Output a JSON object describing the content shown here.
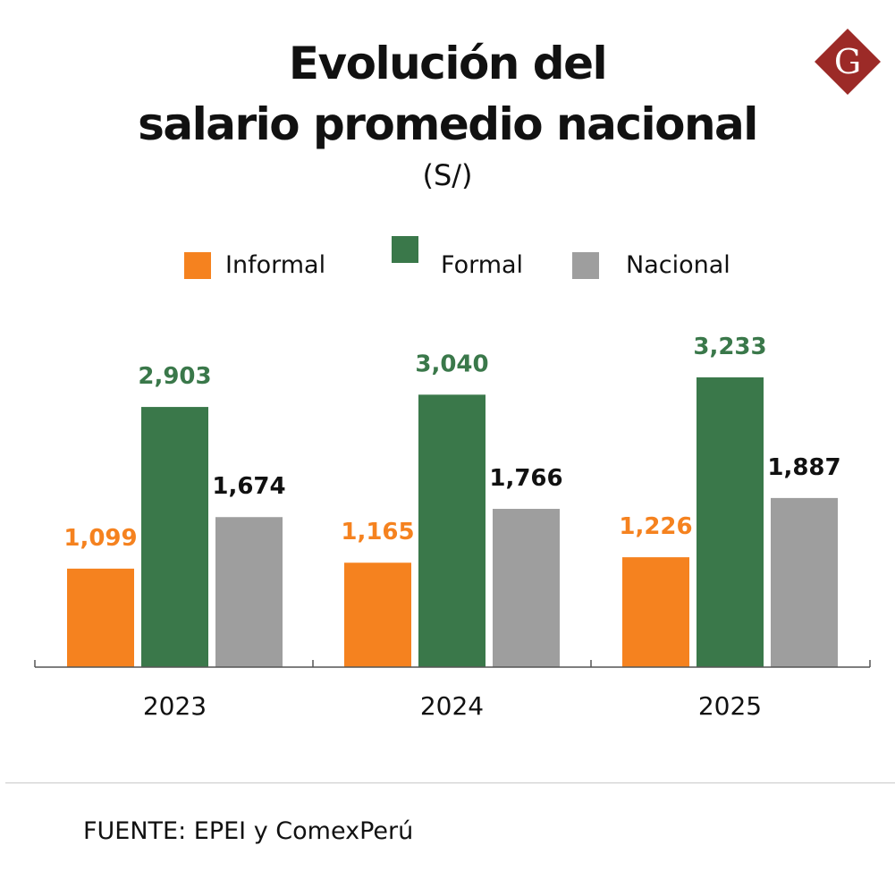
{
  "title_line1": "Evolución del",
  "title_line2": "salario promedio nacional",
  "unit": "(S/)",
  "logo_letter": "G",
  "source": "FUENTE: EPEI y ComexPerú",
  "colors": {
    "informal": "#f5821f",
    "formal": "#3a784a",
    "nacional": "#9e9e9e",
    "logo": "#9c2a27",
    "label_nacional": "#111111"
  },
  "chart_data": {
    "type": "bar",
    "title": "Evolución del salario promedio nacional",
    "subtitle": "(S/)",
    "categories": [
      "2023",
      "2024",
      "2025"
    ],
    "series": [
      {
        "name": "Informal",
        "values": [
          1099,
          1165,
          1226
        ],
        "labels": [
          "1,099",
          "1,165",
          "1,226"
        ]
      },
      {
        "name": "Formal",
        "values": [
          2903,
          3040,
          3233
        ],
        "labels": [
          "2,903",
          "3,040",
          "3,233"
        ]
      },
      {
        "name": "Nacional",
        "values": [
          1674,
          1766,
          1887
        ],
        "labels": [
          "1,674",
          "1,766",
          "1,887"
        ]
      }
    ],
    "legend_position": "top-center",
    "grid": false,
    "data_labels": true,
    "ylim": [
      0,
      3233
    ]
  }
}
